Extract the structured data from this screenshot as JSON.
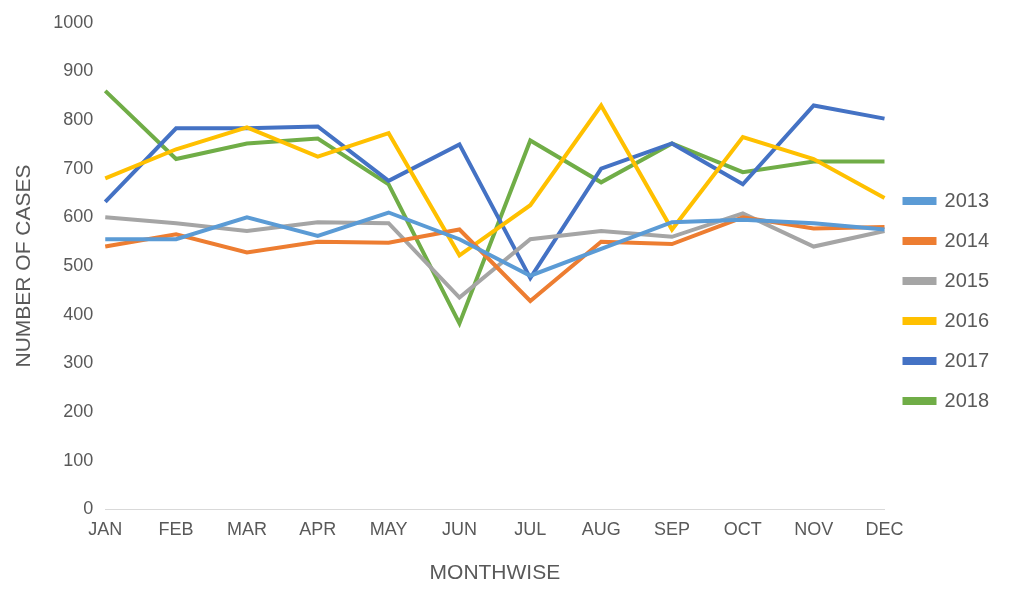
{
  "chart_data": {
    "type": "line",
    "x_label": "MONTHWISE",
    "y_label": "NUMBER OF CASES",
    "categories": [
      "JAN",
      "FEB",
      "MAR",
      "APR",
      "MAY",
      "JUN",
      "JUL",
      "AUG",
      "SEP",
      "OCT",
      "NOV",
      "DEC"
    ],
    "series": [
      {
        "name": "2013",
        "color": "#5b9bd5",
        "values": [
          555,
          555,
          600,
          562,
          610,
          555,
          480,
          535,
          590,
          595,
          588,
          575
        ]
      },
      {
        "name": "2014",
        "color": "#ed7d31",
        "values": [
          540,
          565,
          528,
          550,
          548,
          575,
          428,
          550,
          545,
          600,
          577,
          580
        ]
      },
      {
        "name": "2015",
        "color": "#a5a5a5",
        "values": [
          600,
          588,
          572,
          590,
          588,
          435,
          555,
          572,
          560,
          608,
          540,
          572
        ]
      },
      {
        "name": "2016",
        "color": "#ffc000",
        "values": [
          680,
          740,
          785,
          725,
          773,
          522,
          625,
          830,
          575,
          765,
          720,
          640
        ]
      },
      {
        "name": "2017",
        "color": "#4472c4",
        "values": [
          632,
          783,
          783,
          787,
          675,
          750,
          475,
          700,
          752,
          668,
          830,
          803
        ]
      },
      {
        "name": "2018",
        "color": "#70ad47",
        "values": [
          860,
          720,
          752,
          762,
          668,
          382,
          758,
          672,
          752,
          693,
          715,
          715
        ]
      }
    ],
    "ylim": [
      0,
      1000
    ],
    "yticks": [
      0,
      100,
      200,
      300,
      400,
      500,
      600,
      700,
      800,
      900,
      1000
    ],
    "grid": false,
    "legend": "right"
  }
}
